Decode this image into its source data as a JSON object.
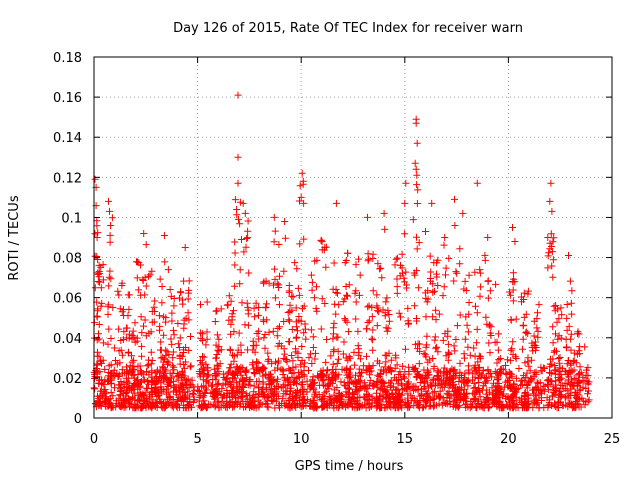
{
  "chart_data": {
    "type": "scatter",
    "title": "Day 126 of 2015, Rate Of TEC Index for receiver warn",
    "xlabel": "GPS time / hours",
    "ylabel": "ROTI / TECUs",
    "xlim": [
      0,
      25
    ],
    "ylim": [
      0,
      0.18
    ],
    "xticks": [
      0,
      5,
      10,
      15,
      20,
      25
    ],
    "xtick_labels": [
      "0",
      "5",
      "10",
      "15",
      "20",
      "25"
    ],
    "yticks": [
      0,
      0.02,
      0.04,
      0.06,
      0.08,
      0.1,
      0.12,
      0.14,
      0.16,
      0.18
    ],
    "ytick_labels": [
      "0",
      "0.02",
      "0.04",
      "0.06",
      "0.08",
      "0.1",
      "0.12",
      "0.14",
      "0.16",
      "0.18"
    ],
    "grid": true,
    "marker": "+",
    "color": "#ff0000",
    "data_range_hours": [
      0,
      23.9
    ],
    "notable_points": [
      {
        "x": 0.05,
        "y": 0.119
      },
      {
        "x": 0.1,
        "y": 0.115
      },
      {
        "x": 0.15,
        "y": 0.09
      },
      {
        "x": 0.7,
        "y": 0.108
      },
      {
        "x": 0.75,
        "y": 0.103
      },
      {
        "x": 0.8,
        "y": 0.096
      },
      {
        "x": 2.4,
        "y": 0.092
      },
      {
        "x": 3.4,
        "y": 0.091
      },
      {
        "x": 4.4,
        "y": 0.085
      },
      {
        "x": 6.95,
        "y": 0.161
      },
      {
        "x": 6.95,
        "y": 0.13
      },
      {
        "x": 6.95,
        "y": 0.117
      },
      {
        "x": 7.2,
        "y": 0.107
      },
      {
        "x": 7.3,
        "y": 0.102
      },
      {
        "x": 8.7,
        "y": 0.1
      },
      {
        "x": 9.2,
        "y": 0.098
      },
      {
        "x": 10.05,
        "y": 0.122
      },
      {
        "x": 10.1,
        "y": 0.118
      },
      {
        "x": 10.0,
        "y": 0.11
      },
      {
        "x": 11.7,
        "y": 0.107
      },
      {
        "x": 13.2,
        "y": 0.1
      },
      {
        "x": 14.0,
        "y": 0.102
      },
      {
        "x": 15.05,
        "y": 0.117
      },
      {
        "x": 15.0,
        "y": 0.107
      },
      {
        "x": 15.55,
        "y": 0.149
      },
      {
        "x": 15.55,
        "y": 0.147
      },
      {
        "x": 15.6,
        "y": 0.137
      },
      {
        "x": 15.5,
        "y": 0.127
      },
      {
        "x": 15.55,
        "y": 0.124
      },
      {
        "x": 16.0,
        "y": 0.093
      },
      {
        "x": 16.3,
        "y": 0.107
      },
      {
        "x": 17.4,
        "y": 0.109
      },
      {
        "x": 17.8,
        "y": 0.102
      },
      {
        "x": 18.5,
        "y": 0.117
      },
      {
        "x": 19.0,
        "y": 0.09
      },
      {
        "x": 20.2,
        "y": 0.095
      },
      {
        "x": 22.05,
        "y": 0.117
      },
      {
        "x": 22.0,
        "y": 0.108
      },
      {
        "x": 22.1,
        "y": 0.103
      },
      {
        "x": 21.9,
        "y": 0.09
      },
      {
        "x": 22.9,
        "y": 0.081
      }
    ],
    "spike_events": [
      {
        "x": 0.1,
        "peak": 0.115
      },
      {
        "x": 0.3,
        "peak": 0.08
      },
      {
        "x": 0.75,
        "peak": 0.103
      },
      {
        "x": 1.3,
        "peak": 0.07
      },
      {
        "x": 1.7,
        "peak": 0.062
      },
      {
        "x": 2.0,
        "peak": 0.08
      },
      {
        "x": 2.4,
        "peak": 0.088
      },
      {
        "x": 2.8,
        "peak": 0.083
      },
      {
        "x": 3.3,
        "peak": 0.09
      },
      {
        "x": 3.7,
        "peak": 0.075
      },
      {
        "x": 4.2,
        "peak": 0.063
      },
      {
        "x": 4.5,
        "peak": 0.07
      },
      {
        "x": 5.3,
        "peak": 0.058
      },
      {
        "x": 6.0,
        "peak": 0.055
      },
      {
        "x": 6.6,
        "peak": 0.065
      },
      {
        "x": 6.95,
        "peak": 0.115
      },
      {
        "x": 7.3,
        "peak": 0.1
      },
      {
        "x": 7.8,
        "peak": 0.06
      },
      {
        "x": 8.3,
        "peak": 0.072
      },
      {
        "x": 8.8,
        "peak": 0.098
      },
      {
        "x": 9.3,
        "peak": 0.09
      },
      {
        "x": 9.7,
        "peak": 0.08
      },
      {
        "x": 10.05,
        "peak": 0.118
      },
      {
        "x": 10.6,
        "peak": 0.08
      },
      {
        "x": 11.1,
        "peak": 0.09
      },
      {
        "x": 11.7,
        "peak": 0.078
      },
      {
        "x": 12.2,
        "peak": 0.085
      },
      {
        "x": 12.7,
        "peak": 0.08
      },
      {
        "x": 13.3,
        "peak": 0.09
      },
      {
        "x": 13.8,
        "peak": 0.08
      },
      {
        "x": 14.2,
        "peak": 0.095
      },
      {
        "x": 14.7,
        "peak": 0.085
      },
      {
        "x": 15.05,
        "peak": 0.112
      },
      {
        "x": 15.55,
        "peak": 0.125
      },
      {
        "x": 16.1,
        "peak": 0.085
      },
      {
        "x": 16.5,
        "peak": 0.08
      },
      {
        "x": 17.0,
        "peak": 0.09
      },
      {
        "x": 17.5,
        "peak": 0.1
      },
      {
        "x": 18.0,
        "peak": 0.072
      },
      {
        "x": 18.5,
        "peak": 0.085
      },
      {
        "x": 19.0,
        "peak": 0.085
      },
      {
        "x": 19.5,
        "peak": 0.07
      },
      {
        "x": 20.2,
        "peak": 0.092
      },
      {
        "x": 20.8,
        "peak": 0.065
      },
      {
        "x": 21.3,
        "peak": 0.06
      },
      {
        "x": 22.05,
        "peak": 0.108
      },
      {
        "x": 22.4,
        "peak": 0.06
      },
      {
        "x": 22.9,
        "peak": 0.078
      },
      {
        "x": 23.3,
        "peak": 0.05
      }
    ],
    "baseline_band": [
      0.005,
      0.025
    ],
    "seed": 126
  }
}
